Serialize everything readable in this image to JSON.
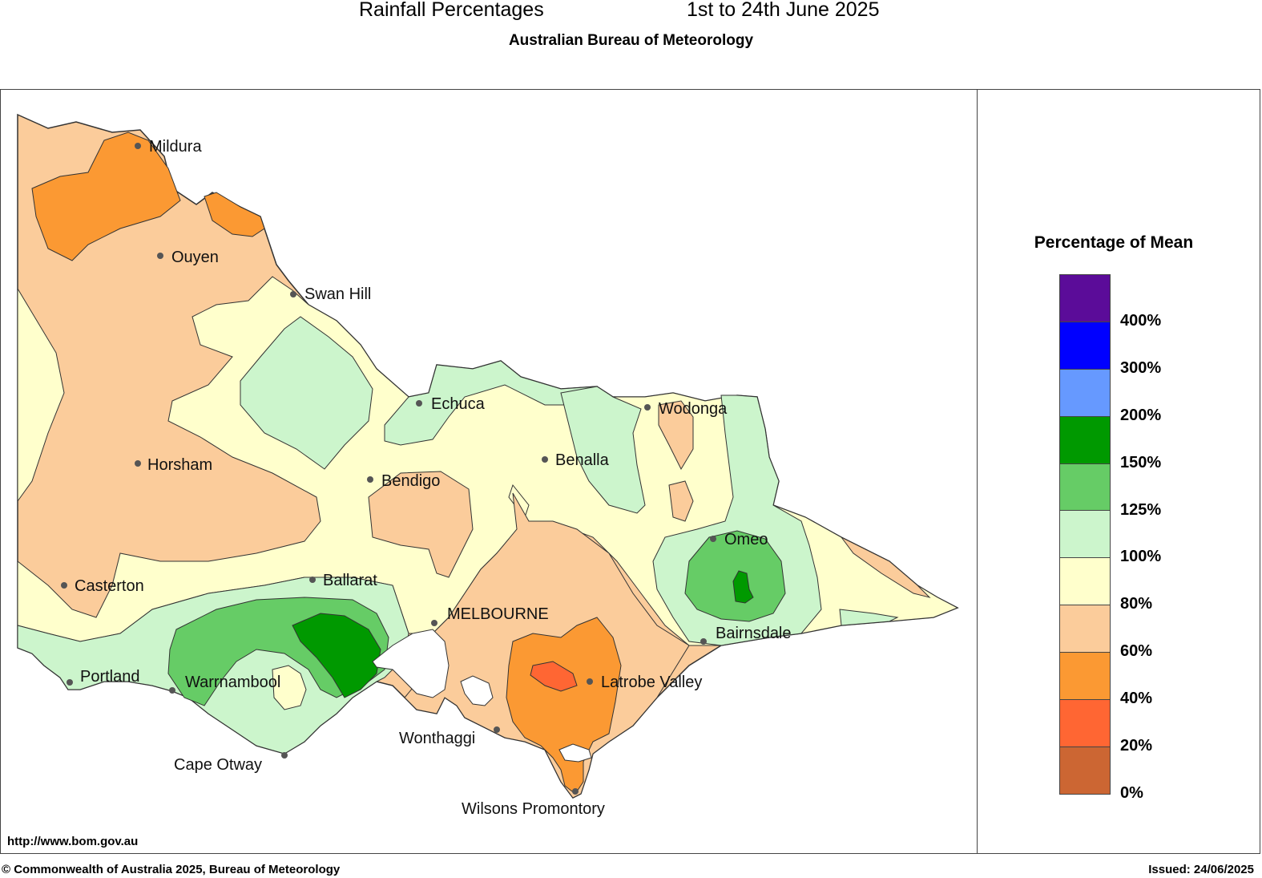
{
  "header": {
    "title_left": "Rainfall Percentages",
    "title_right": "1st to 24th June 2025",
    "subtitle": "Australian Bureau of Meteorology"
  },
  "legend": {
    "title": "Percentage of Mean",
    "bins": [
      {
        "label": "400%",
        "color": "#5b0c99"
      },
      {
        "label": "300%",
        "color": "#0000ff"
      },
      {
        "label": "200%",
        "color": "#6699ff"
      },
      {
        "label": "150%",
        "color": "#009900"
      },
      {
        "label": "125%",
        "color": "#66cc66"
      },
      {
        "label": "100%",
        "color": "#ccf5cc"
      },
      {
        "label": "80%",
        "color": "#ffffcc"
      },
      {
        "label": "60%",
        "color": "#fbcc9b"
      },
      {
        "label": "40%",
        "color": "#fb9933"
      },
      {
        "label": "20%",
        "color": "#ff6633"
      },
      {
        "label": "0%",
        "color": "#cc6633"
      }
    ]
  },
  "places": {
    "mildura": "Mildura",
    "ouyen": "Ouyen",
    "swan_hill": "Swan Hill",
    "echuca": "Echuca",
    "wodonga": "Wodonga",
    "horsham": "Horsham",
    "bendigo": "Bendigo",
    "benalla": "Benalla",
    "omeo": "Omeo",
    "casterton": "Casterton",
    "ballarat": "Ballarat",
    "melbourne": "MELBOURNE",
    "bairnsdale": "Bairnsdale",
    "portland": "Portland",
    "warrnambool": "Warrnambool",
    "latrobe_valley": "Latrobe Valley",
    "wonthaggi": "Wonthaggi",
    "cape_otway": "Cape Otway",
    "wilsons_promontory": "Wilsons Promontory"
  },
  "footer": {
    "url": "http://www.bom.gov.au",
    "copyright": "© Commonwealth of Australia 2025, Bureau of Meteorology",
    "issued": "Issued: 24/06/2025"
  }
}
